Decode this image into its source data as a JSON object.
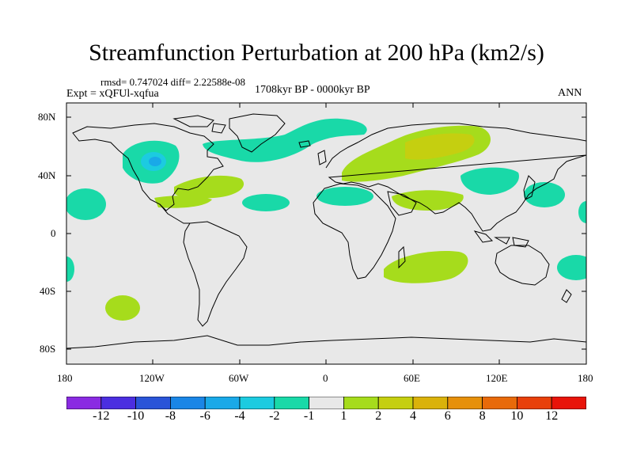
{
  "title": "Streamfunction Perturbation at 200 hPa (km2/s)",
  "stats": "rmsd= 0.747024 diff= 2.22588e-08",
  "experiment": "Expt = xQFUl-xqfua",
  "period": "1708kyr BP - 0000kyr BP",
  "season": "ANN",
  "lat_labels": [
    "80N",
    "40N",
    "0",
    "40S",
    "80S"
  ],
  "lon_labels": [
    "180",
    "120W",
    "60W",
    "0",
    "60E",
    "120E",
    "180"
  ],
  "colorbar": {
    "labels": [
      "-12",
      "-10",
      "-8",
      "-6",
      "-4",
      "-2",
      "-1",
      "1",
      "2",
      "4",
      "6",
      "8",
      "10",
      "12"
    ],
    "colors": [
      "#8a2be2",
      "#4b2ee0",
      "#2a54d8",
      "#1a86e6",
      "#19a9e8",
      "#1ccbe0",
      "#19d9a8",
      "#e8e8e8",
      "#a6dc1c",
      "#c5cf10",
      "#dab20a",
      "#e6900a",
      "#e86a0a",
      "#e8400a",
      "#e8140a"
    ]
  },
  "colors": {
    "background": "#e8e8e8",
    "neg1": "#19d9a8",
    "neg2": "#1ccbe0",
    "neg4": "#19a9e8",
    "pos1": "#a6dc1c",
    "pos2": "#c5cf10",
    "coast": "#000000"
  }
}
